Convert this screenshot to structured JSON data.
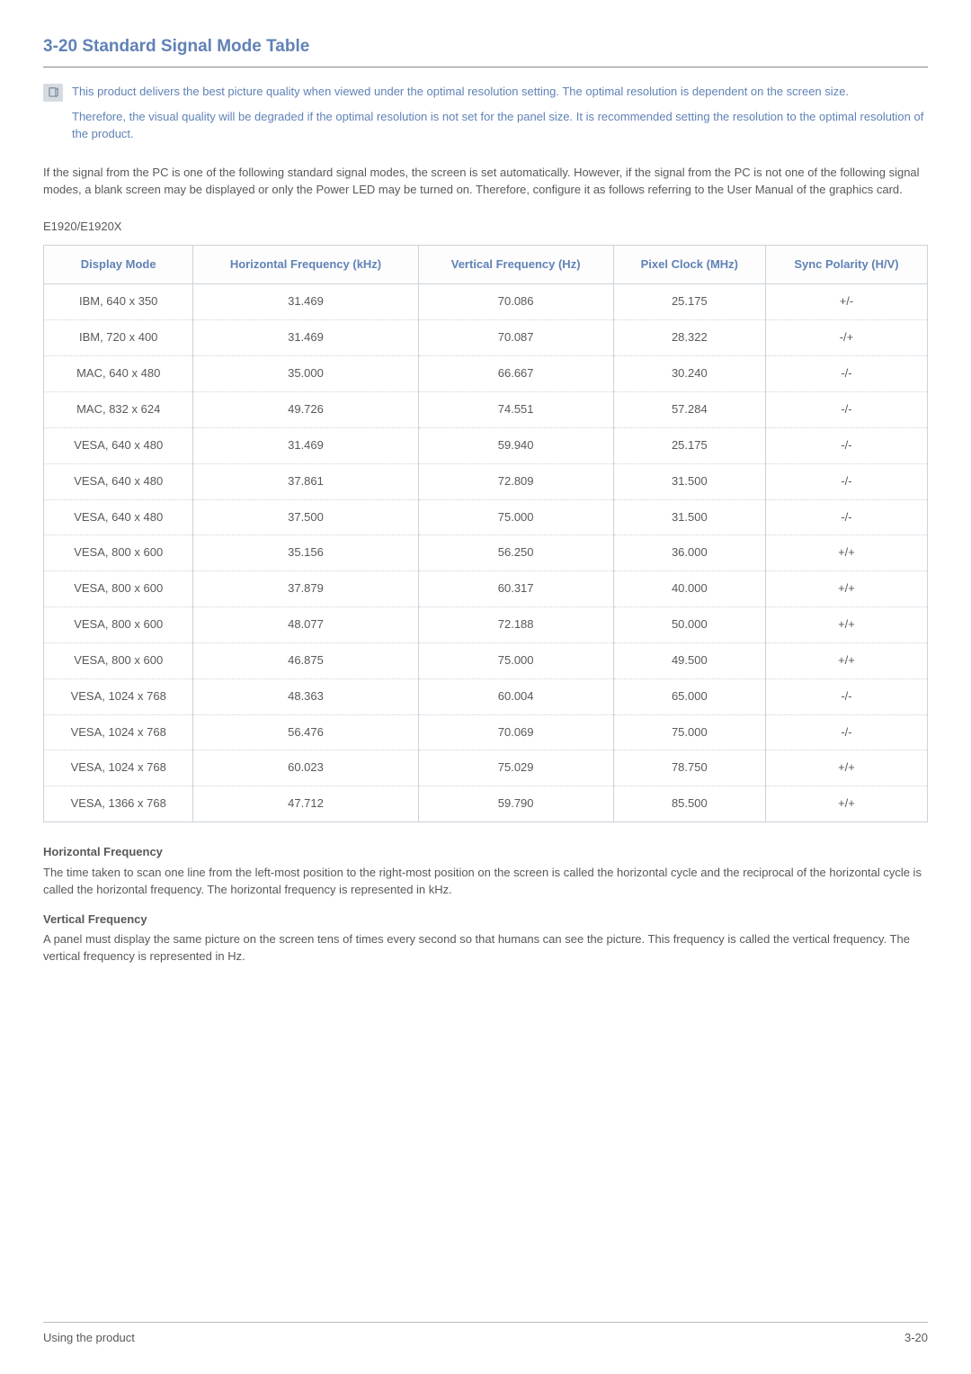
{
  "heading": {
    "number": "3-20",
    "title": "Standard Signal Mode Table"
  },
  "note": {
    "p1": "This product delivers the best picture quality when viewed under the optimal resolution setting. The optimal resolution is dependent on the screen size.",
    "p2": "Therefore, the visual quality will be degraded if the optimal resolution is not set for the panel size. It is recommended setting the resolution to the optimal resolution of the product."
  },
  "intro": "If the signal from the PC is one of the following standard signal modes, the screen is set automatically. However, if the signal from the PC is not one of the following signal modes, a blank screen may be displayed or only the Power LED may be turned on. Therefore, configure it as follows referring to the User Manual of the graphics card.",
  "model": "E1920/E1920X",
  "table": {
    "columns": [
      "Display Mode",
      "Horizontal Frequency (kHz)",
      "Vertical Frequency (Hz)",
      "Pixel Clock (MHz)",
      "Sync Polarity (H/V)"
    ],
    "rows": [
      [
        "IBM, 640 x 350",
        "31.469",
        "70.086",
        "25.175",
        "+/-"
      ],
      [
        "IBM, 720 x 400",
        "31.469",
        "70.087",
        "28.322",
        "-/+"
      ],
      [
        "MAC, 640 x 480",
        "35.000",
        "66.667",
        "30.240",
        "-/-"
      ],
      [
        "MAC, 832 x 624",
        "49.726",
        "74.551",
        "57.284",
        "-/-"
      ],
      [
        "VESA, 640 x 480",
        "31.469",
        "59.940",
        "25.175",
        "-/-"
      ],
      [
        "VESA, 640 x 480",
        "37.861",
        "72.809",
        "31.500",
        "-/-"
      ],
      [
        "VESA, 640 x 480",
        "37.500",
        "75.000",
        "31.500",
        "-/-"
      ],
      [
        "VESA, 800 x 600",
        "35.156",
        "56.250",
        "36.000",
        "+/+"
      ],
      [
        "VESA, 800 x 600",
        "37.879",
        "60.317",
        "40.000",
        "+/+"
      ],
      [
        "VESA, 800 x 600",
        "48.077",
        "72.188",
        "50.000",
        "+/+"
      ],
      [
        "VESA, 800 x 600",
        "46.875",
        "75.000",
        "49.500",
        "+/+"
      ],
      [
        "VESA, 1024 x 768",
        "48.363",
        "60.004",
        "65.000",
        "-/-"
      ],
      [
        "VESA, 1024 x 768",
        "56.476",
        "70.069",
        "75.000",
        "-/-"
      ],
      [
        "VESA, 1024 x 768",
        "60.023",
        "75.029",
        "78.750",
        "+/+"
      ],
      [
        "VESA, 1366 x 768",
        "47.712",
        "59.790",
        "85.500",
        "+/+"
      ]
    ]
  },
  "defs": {
    "hf_title": "Horizontal Frequency",
    "hf_body": "The time taken to scan one line from the left-most position to the right-most position on the screen is called the horizontal cycle and the reciprocal of the horizontal cycle is called the horizontal frequency. The horizontal frequency is represented in kHz.",
    "vf_title": "Vertical Frequency",
    "vf_body": "A panel must display the same picture on the screen tens of times every second so that humans can see the picture. This frequency is called the vertical frequency. The vertical frequency is represented in Hz."
  },
  "footer": {
    "left": "Using the product",
    "right": "3-20"
  },
  "colors": {
    "heading": "#6082b6",
    "body": "#595959",
    "border": "#ccd3da",
    "note_icon_bg": "#d5dbe1"
  }
}
